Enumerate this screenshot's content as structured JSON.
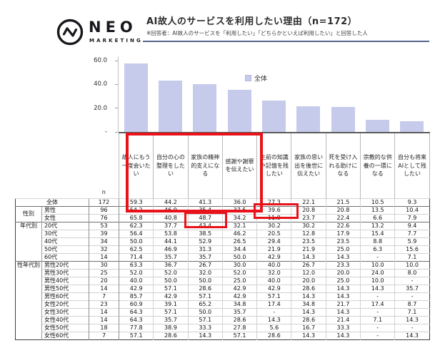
{
  "header": {
    "logo": {
      "brand": "NEO",
      "sub": "MARKETING",
      "icon": "pulse-circle-icon"
    },
    "title": "AI故人のサービスを利用したい理由（n=172）",
    "note": "※回答者：AI故人のサービスを「利用したい」「どちらかといえば利用したい」と回答した人",
    "rule_color": "#56648b"
  },
  "chart_data": {
    "type": "bar",
    "title": "AI故人のサービスを利用したい理由（n=172）",
    "legend": [
      "全体"
    ],
    "legend_position": "top-center",
    "bar_color": "#c6cbec",
    "grid": false,
    "ylim": [
      0,
      65
    ],
    "y_ticks": [
      "60.0",
      "40.0",
      "20.0",
      "-"
    ],
    "categories": [
      "故人にもう一度会いたい",
      "自分の心の整理をしたい",
      "家族の精神的支えになる",
      "感謝や謝罪を伝えたい",
      "生前の知識や記憶を残したい",
      "家族の思い出を後世に伝えたい",
      "死を受け入れる助けになる",
      "宗教的な供養の一環になる",
      "自分も将来AIとして残したい"
    ],
    "values": [
      59.3,
      44.2,
      41.3,
      36.0,
      27.3,
      22.1,
      21.5,
      10.5,
      9.3
    ]
  },
  "table": {
    "n_label": "n",
    "groups": [
      {
        "label": null,
        "rows": [
          {
            "label": "全体",
            "n": "172",
            "values": [
              "59.3",
              "44.2",
              "41.3",
              "36.0",
              "27.3",
              "22.1",
              "21.5",
              "10.5",
              "9.3"
            ]
          }
        ]
      },
      {
        "label": "性別",
        "rows": [
          {
            "label": "男性",
            "n": "96",
            "values": [
              "54.2",
              "46.9",
              "35.4",
              "37.5",
              "39.6",
              "20.8",
              "20.8",
              "13.5",
              "10.4"
            ]
          },
          {
            "label": "女性",
            "n": "76",
            "values": [
              "65.8",
              "40.8",
              "48.7",
              "34.2",
              "11.8",
              "23.7",
              "22.4",
              "6.6",
              "7.9"
            ]
          }
        ]
      },
      {
        "label": "年代別",
        "rows": [
          {
            "label": "20代",
            "n": "53",
            "values": [
              "62.3",
              "37.7",
              "43.4",
              "32.1",
              "30.2",
              "30.2",
              "22.6",
              "13.2",
              "9.4"
            ]
          },
          {
            "label": "30代",
            "n": "39",
            "values": [
              "56.4",
              "53.8",
              "38.5",
              "46.2",
              "20.5",
              "12.8",
              "17.9",
              "15.4",
              "7.7"
            ]
          },
          {
            "label": "40代",
            "n": "34",
            "values": [
              "50.0",
              "44.1",
              "52.9",
              "26.5",
              "29.4",
              "23.5",
              "23.5",
              "8.8",
              "5.9"
            ]
          },
          {
            "label": "50代",
            "n": "32",
            "values": [
              "62.5",
              "46.9",
              "31.3",
              "34.4",
              "21.9",
              "21.9",
              "25.0",
              "6.3",
              "15.6"
            ]
          },
          {
            "label": "60代",
            "n": "14",
            "values": [
              "71.4",
              "35.7",
              "35.7",
              "50.0",
              "42.9",
              "14.3",
              "14.3",
              "-",
              "7.1"
            ]
          }
        ]
      },
      {
        "label": "性年代別",
        "rows": [
          {
            "label": "男性20代",
            "n": "30",
            "values": [
              "63.3",
              "36.7",
              "26.7",
              "30.0",
              "40.0",
              "26.7",
              "23.3",
              "10.0",
              "10.0"
            ]
          },
          {
            "label": "男性30代",
            "n": "25",
            "values": [
              "52.0",
              "52.0",
              "32.0",
              "52.0",
              "32.0",
              "12.0",
              "20.0",
              "24.0",
              "8.0"
            ]
          },
          {
            "label": "男性40代",
            "n": "20",
            "values": [
              "40.0",
              "50.0",
              "50.0",
              "25.0",
              "40.0",
              "20.0",
              "25.0",
              "10.0",
              "-"
            ]
          },
          {
            "label": "男性50代",
            "n": "14",
            "values": [
              "42.9",
              "57.1",
              "28.6",
              "42.9",
              "42.9",
              "28.6",
              "14.3",
              "14.3",
              "35.7"
            ]
          },
          {
            "label": "男性60代",
            "n": "7",
            "values": [
              "85.7",
              "42.9",
              "57.1",
              "42.9",
              "57.1",
              "14.3",
              "14.3",
              "-",
              "-"
            ]
          },
          {
            "label": "女性20代",
            "n": "23",
            "values": [
              "60.9",
              "39.1",
              "65.2",
              "34.8",
              "17.4",
              "34.8",
              "21.7",
              "17.4",
              "8.7"
            ]
          },
          {
            "label": "女性30代",
            "n": "14",
            "values": [
              "64.3",
              "57.1",
              "50.0",
              "35.7",
              "-",
              "14.3",
              "14.3",
              "-",
              "7.1"
            ]
          },
          {
            "label": "女性40代",
            "n": "14",
            "values": [
              "64.3",
              "35.7",
              "57.1",
              "28.6",
              "14.3",
              "28.6",
              "21.4",
              "7.1",
              "14.3"
            ]
          },
          {
            "label": "女性50代",
            "n": "18",
            "values": [
              "77.8",
              "38.9",
              "33.3",
              "27.8",
              "5.6",
              "16.7",
              "33.3",
              "-",
              "-"
            ]
          },
          {
            "label": "女性60代",
            "n": "7",
            "values": [
              "57.1",
              "28.6",
              "14.3",
              "57.1",
              "28.6",
              "14.3",
              "14.3",
              "-",
              "14.3"
            ]
          }
        ]
      }
    ]
  },
  "annotations": {
    "color": "#e8121a",
    "boxes": [
      {
        "name": "highlight-top4-reasons",
        "covers": "上位4項目（カテゴリラベル＋全体行）"
      },
      {
        "name": "highlight-male-col5",
        "covers": "男性 生前の知識や記憶を残したい 39.6"
      },
      {
        "name": "highlight-female-col3",
        "covers": "女性 家族の精神的支えになる 48.7"
      }
    ]
  }
}
